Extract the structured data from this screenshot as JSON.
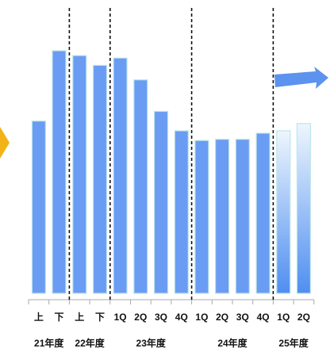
{
  "chart_data": {
    "type": "bar",
    "categories": [
      "上",
      "下",
      "上",
      "下",
      "1Q",
      "2Q",
      "3Q",
      "4Q",
      "1Q",
      "2Q",
      "3Q",
      "4Q",
      "1Q",
      "2Q"
    ],
    "groups": [
      {
        "label": "21年度",
        "start": 0,
        "end": 1
      },
      {
        "label": "22年度",
        "start": 2,
        "end": 3
      },
      {
        "label": "23年度",
        "start": 4,
        "end": 7
      },
      {
        "label": "24年度",
        "start": 8,
        "end": 11
      },
      {
        "label": "25年度",
        "start": 12,
        "end": 13
      }
    ],
    "values": [
      71,
      100,
      98,
      94,
      97,
      88,
      75,
      67,
      63,
      63.5,
      63.5,
      66,
      67,
      70
    ],
    "forecast_from_index": 12,
    "ylim": [
      0,
      110
    ],
    "dividers_after_index": [
      1,
      3,
      7,
      11
    ],
    "colors": {
      "bar": "#6a9cf4",
      "bar_border": "#bfe6ea",
      "forecast_top": "#eef6fd",
      "forecast_bottom": "#4f8ef0",
      "arrow": "#5b93ee",
      "side_marker": "#f2b318",
      "axis": "#aaaaaa",
      "divider": "#111111"
    },
    "grid": false,
    "legend": "none"
  }
}
